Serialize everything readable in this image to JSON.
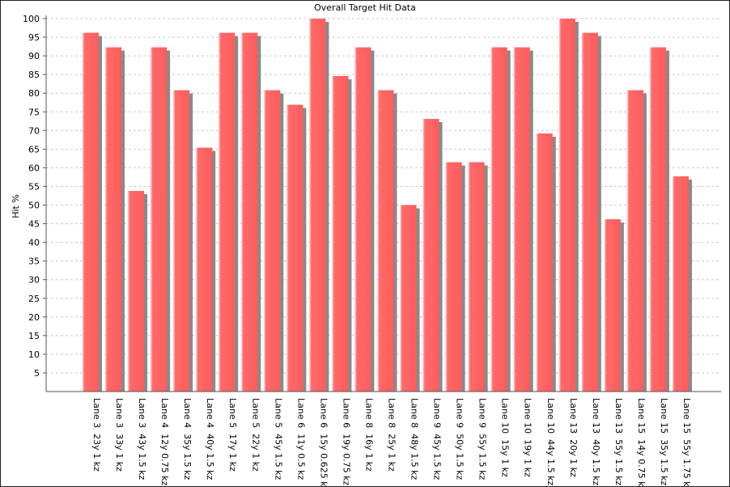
{
  "chart_data": {
    "type": "bar",
    "title": "Overall Target Hit Data",
    "xlabel": "",
    "ylabel": "Hit %",
    "ylim": [
      0,
      100
    ],
    "yticks": [
      5,
      10,
      15,
      20,
      25,
      30,
      35,
      40,
      45,
      50,
      55,
      60,
      65,
      70,
      75,
      80,
      85,
      90,
      95,
      100
    ],
    "grid": true,
    "legend": "none",
    "bar_color": "#ff6a6a",
    "categories": [
      "Lane 3  23y 1 kz",
      "Lane 3  33y 1 kz",
      "Lane 3  43y 1.5 kz",
      "Lane 4  12y 0.75 kz",
      "Lane 4  35y 1.5 kz",
      "Lane 4  40y 1.5 kz",
      "Lane 5  17y 1 kz",
      "Lane 5  22y 1 kz",
      "Lane 5  45y 1.5 kz",
      "Lane 6  11y 0.5 kz",
      "Lane 6  15y 0.625 kz",
      "Lane 6  19y 0.75 kz",
      "Lane 8  16y 1 kz",
      "Lane 8  25y 1 kz",
      "Lane 8  48y 1.5 kz",
      "Lane 9  45y 1.5 kz",
      "Lane 9  50y 1.5 kz",
      "Lane 9  55y 1.5 kz",
      "Lane 10  15y 1 kz",
      "Lane 10  19y 1 kz",
      "Lane 10  44y 1.5 kz",
      "Lane 13  20y 1 kz",
      "Lane 13  40y 1.5 kz",
      "Lane 13  55y 1.5 kz",
      "Lane 15  14y 0.75 kz",
      "Lane 15  35y 1.5 kz",
      "Lane 15  55y 1.75 kz"
    ],
    "values": [
      96.2,
      92.3,
      53.8,
      92.3,
      80.8,
      65.4,
      96.2,
      96.2,
      80.8,
      76.9,
      100,
      84.6,
      92.3,
      80.8,
      50.0,
      73.1,
      61.5,
      61.5,
      92.3,
      92.3,
      69.2,
      100,
      96.2,
      46.2,
      80.8,
      92.3,
      57.7
    ]
  }
}
